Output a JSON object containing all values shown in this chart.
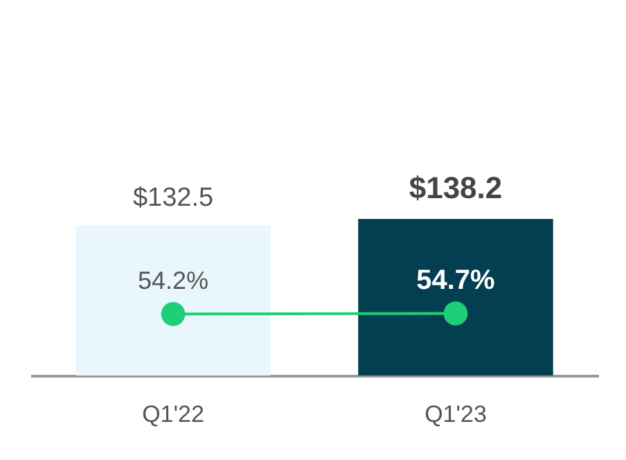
{
  "chart_data": {
    "type": "bar",
    "categories": [
      "Q1'22",
      "Q1'23"
    ],
    "series": [
      {
        "colors": [
          "#eaf6fd",
          "#033f50"
        ],
        "values": [
          132.5,
          138.2
        ],
        "value_labels": [
          "$132.5",
          "$138.2"
        ]
      },
      {
        "type": "line",
        "color": "#1ecf78",
        "marker": "circle",
        "values": [
          54.2,
          54.7
        ],
        "value_labels": [
          "54.2%",
          "54.7%"
        ]
      }
    ]
  }
}
